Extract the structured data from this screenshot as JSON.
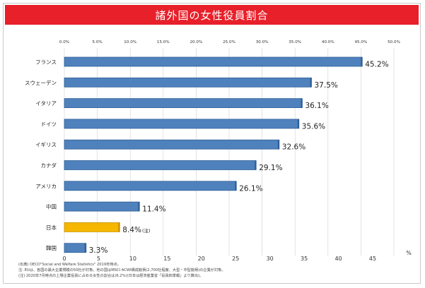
{
  "colors": {
    "title_bg": "#e7202a",
    "bar": "#4f81bd",
    "bar_border": "#2f5f96",
    "highlight_bar": "#f5b700",
    "highlight_border": "#c98f00",
    "grid": "#d0d0d0"
  },
  "chart_data": {
    "type": "bar",
    "orientation": "horizontal",
    "title": "諸外国の女性役員割合",
    "categories": [
      "フランス",
      "スウェーデン",
      "イタリア",
      "ドイツ",
      "イギリス",
      "カナダ",
      "アメリカ",
      "中国",
      "日本",
      "韓国"
    ],
    "values": [
      45.2,
      37.5,
      36.1,
      35.6,
      32.6,
      29.1,
      26.1,
      11.4,
      8.4,
      3.3
    ],
    "data_labels": [
      "45.2%",
      "37.5%",
      "36.1%",
      "35.6%",
      "32.6%",
      "29.1%",
      "26.1%",
      "11.4%",
      "8.4%",
      "3.3%"
    ],
    "highlight_index": 8,
    "highlight_note": "(注)",
    "top_axis_ticks": [
      "0.0%",
      "5.0%",
      "10.0%",
      "15.0%",
      "20.0%",
      "25.0%",
      "30.0%",
      "35.0%",
      "40.0%",
      "45.0%",
      "50.0%"
    ],
    "bottom_axis_ticks": [
      "0",
      "5",
      "10",
      "15",
      "20",
      "25",
      "30",
      "35",
      "40",
      "45"
    ],
    "bottom_axis_unit": "%",
    "xlim": [
      0,
      50
    ],
    "grid": true
  },
  "notes": [
    "(出典) OECD\"Social and Welfare Statistics\" 2019年時点。",
    "注: EUは、各国の最大企業規模の50社が対象。他の国はMSCI ACWI構成銘柄(2,700社程度、大型・中型銘柄)の企業が対象。",
    "(注) 2020年7月時点の上場企業役員に占める女性の割合は(6.2%)(日本は経済産業省「役員四季報」より算出)。"
  ]
}
